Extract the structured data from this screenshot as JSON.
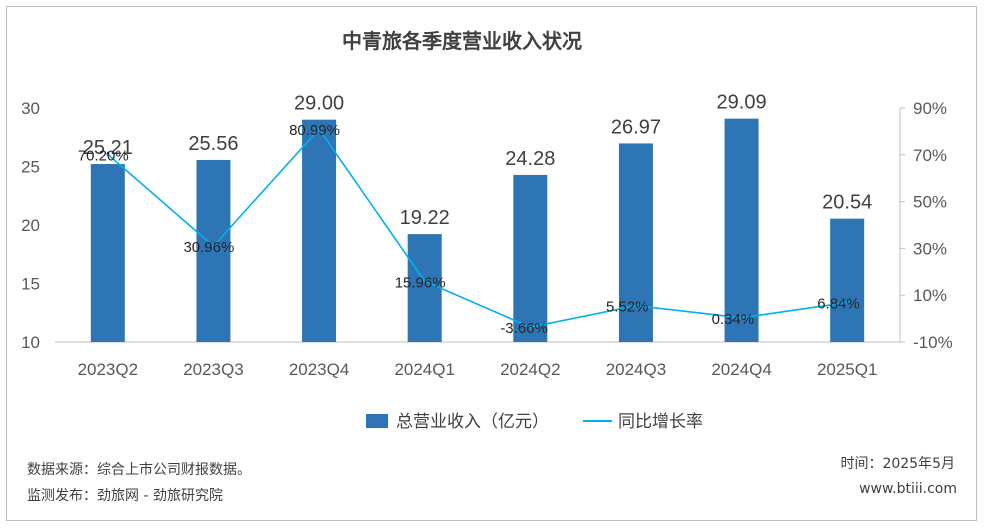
{
  "chart_data": {
    "type": "bar",
    "title": "中青旅各季度营业收入状况",
    "categories": [
      "2023Q2",
      "2023Q3",
      "2023Q4",
      "2024Q1",
      "2024Q2",
      "2024Q3",
      "2024Q4",
      "2025Q1"
    ],
    "series": [
      {
        "name": "总营业收入（亿元）",
        "type": "bar",
        "axis": "left",
        "values": [
          25.21,
          25.56,
          29.0,
          19.22,
          24.28,
          26.97,
          29.09,
          20.54
        ],
        "labels": [
          "25.21",
          "25.56",
          "29.00",
          "19.22",
          "24.28",
          "26.97",
          "29.09",
          "20.54"
        ],
        "color": "#2e75b6"
      },
      {
        "name": "同比增长率",
        "type": "line",
        "axis": "right",
        "values": [
          70.2,
          30.96,
          80.99,
          15.96,
          -3.66,
          5.52,
          0.34,
          6.84
        ],
        "labels": [
          "70.20%",
          "30.96%",
          "80.99%",
          "15.96%",
          "-3.66%",
          "5.52%",
          "0.34%",
          "6.84%"
        ],
        "color": "#00b0f0"
      }
    ],
    "y_left": {
      "ylim": [
        10,
        30
      ],
      "ticks": [
        "10",
        "15",
        "20",
        "25",
        "30"
      ]
    },
    "y_right": {
      "ylim": [
        -10,
        90
      ],
      "ticks": [
        "-10%",
        "10%",
        "30%",
        "50%",
        "70%",
        "90%"
      ]
    },
    "grid": false,
    "legend_position": "bottom"
  },
  "legend": {
    "bar_label": "总营业收入（亿元）",
    "line_label": "同比增长率"
  },
  "footer": {
    "source": "数据来源：综合上市公司财报数据。",
    "monitor": "监测发布：劲旅网 - 劲旅研究院",
    "time": "时间：2025年5月",
    "site": "www.btiii.com"
  }
}
